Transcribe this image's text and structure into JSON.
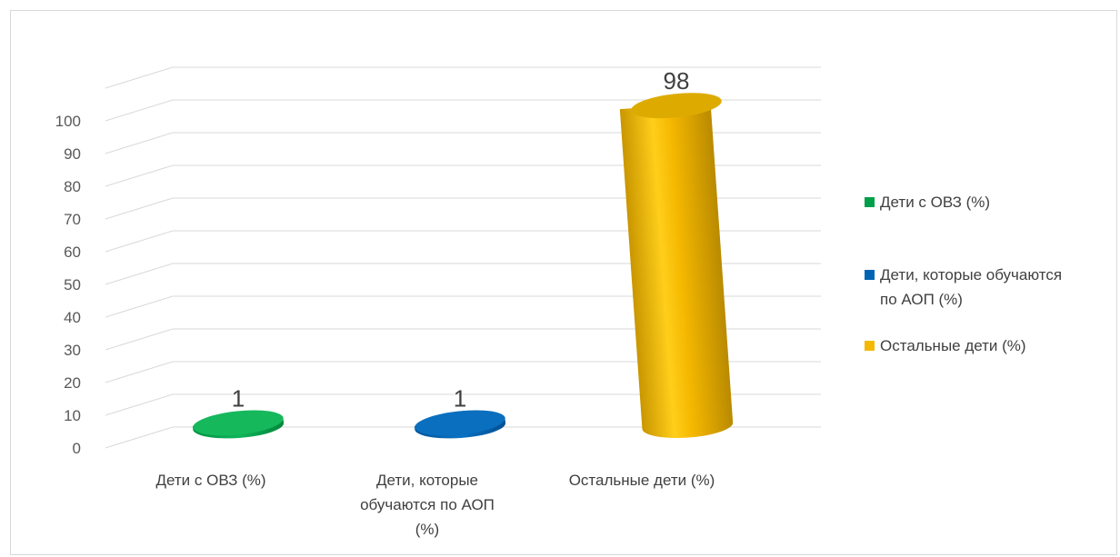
{
  "chart_data": {
    "type": "bar",
    "style": "3d-cylinder",
    "categories": [
      [
        "Дети с ОВЗ (%)"
      ],
      [
        "Дети, которые",
        "обучаются по АОП",
        "(%)"
      ],
      [
        "Остальные дети (%)"
      ]
    ],
    "values": [
      1,
      1,
      98
    ],
    "data_labels": [
      "1",
      "1",
      "98"
    ],
    "colors": [
      "#00a04a",
      "#0064b4",
      "#f5b800"
    ],
    "ylim": [
      0,
      100
    ],
    "yticks": [
      "0",
      "10",
      "20",
      "30",
      "40",
      "50",
      "60",
      "70",
      "80",
      "90",
      "100"
    ],
    "grid": true,
    "legend_position": "right",
    "legend": [
      {
        "lines": [
          "Дети с ОВЗ (%)"
        ],
        "color": "#00a04a"
      },
      {
        "lines": [
          "Дети, которые обучаются",
          "по АОП (%)"
        ],
        "color": "#0064b4"
      },
      {
        "lines": [
          "Остальные дети (%)"
        ],
        "color": "#f5b800"
      }
    ]
  }
}
